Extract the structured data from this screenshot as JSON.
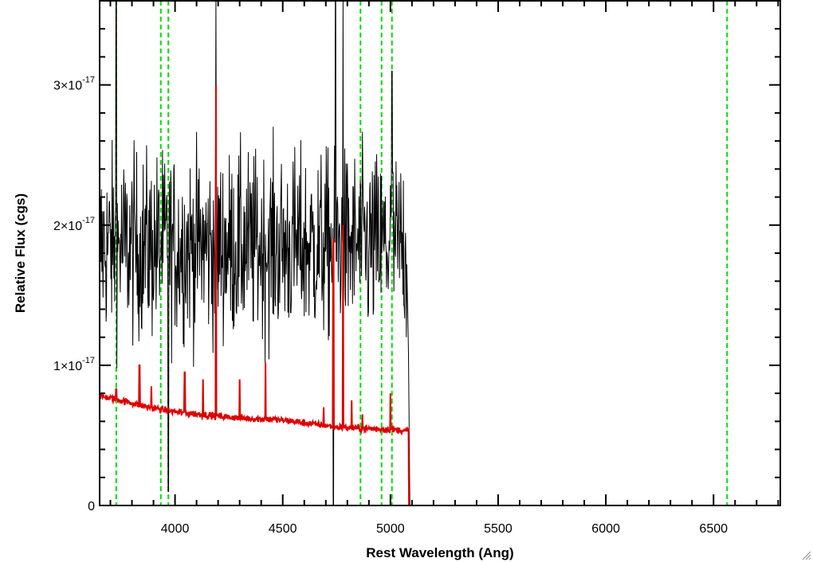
{
  "chart_data": {
    "type": "line",
    "title": "",
    "xlabel": "Rest Wavelength (Ang)",
    "ylabel": "Relative Flux (cgs)",
    "xlim": [
      3650,
      6810
    ],
    "ylim": [
      0,
      3.6e-17
    ],
    "x_ticks": [
      {
        "value": 4000,
        "label": "4000"
      },
      {
        "value": 4500,
        "label": "4500"
      },
      {
        "value": 5000,
        "label": "5000"
      },
      {
        "value": 5500,
        "label": "5500"
      },
      {
        "value": 6000,
        "label": "6000"
      },
      {
        "value": 6500,
        "label": "6500"
      }
    ],
    "y_ticks": [
      {
        "value": 0,
        "mantissa": "0",
        "exponent": ""
      },
      {
        "value": 1e-17,
        "mantissa": "1×10",
        "exponent": "-17"
      },
      {
        "value": 2e-17,
        "mantissa": "2×10",
        "exponent": "-17"
      },
      {
        "value": 3e-17,
        "mantissa": "3×10",
        "exponent": "-17"
      }
    ],
    "grid": false,
    "vertical_lines": {
      "color": "#00dd00",
      "style": "dashed",
      "x": [
        3727,
        3934,
        3969,
        4861,
        4959,
        5007,
        6563
      ]
    },
    "series": [
      {
        "color": "#000000",
        "style": "noisy spectrum",
        "range": [
          3650,
          5085
        ],
        "continuum_mean": 1.85e-17,
        "noise_sigma": 3.3e-18,
        "x": [
          3650,
          3700,
          3727,
          3740,
          3800,
          3850,
          3900,
          3950,
          3969,
          4000,
          4100,
          4190,
          4200,
          4300,
          4400,
          4500,
          4600,
          4700,
          4735,
          4745,
          4780,
          4800,
          4900,
          5000,
          5007,
          5050,
          5075,
          5085,
          5090,
          6810
        ],
        "y": [
          1.6e-17,
          1.7e-17,
          3.6e-17,
          1.8e-17,
          1.9e-17,
          1.8e-17,
          1.9e-17,
          2e-17,
          1e-18,
          1.9e-17,
          1.95e-17,
          3.6e-17,
          1.9e-17,
          1.9e-17,
          2e-17,
          2e-17,
          1.95e-17,
          1.9e-17,
          0.0,
          3.6e-17,
          3.6e-17,
          1.9e-17,
          1.9e-17,
          1.9e-17,
          3.1e-17,
          1.9e-17,
          1.8e-17,
          1e-17,
          0,
          0
        ]
      },
      {
        "color": "#dd0000",
        "style": "model",
        "x": [
          3650,
          3750,
          3850,
          3950,
          4050,
          4150,
          4250,
          4350,
          4450,
          4550,
          4650,
          4750,
          4850,
          4950,
          5000,
          5085,
          5086,
          6810
        ],
        "y": [
          7.8e-18,
          7.5e-18,
          7.1e-18,
          6.8e-18,
          6.6e-18,
          6.45e-18,
          6.3e-18,
          6.2e-18,
          6.15e-18,
          6e-18,
          5.8e-18,
          5.6e-18,
          5.5e-18,
          5.45e-18,
          5.45e-18,
          5.3e-18,
          0,
          0
        ],
        "emission_lines": [
          {
            "x": 3727,
            "peak": 8.3e-18
          },
          {
            "x": 3835,
            "peak": 1e-17
          },
          {
            "x": 3890,
            "peak": 8.5e-18
          },
          {
            "x": 4045,
            "peak": 9.5e-18
          },
          {
            "x": 4130,
            "peak": 9e-18
          },
          {
            "x": 4190,
            "peak": 3e-17
          },
          {
            "x": 4300,
            "peak": 9e-18
          },
          {
            "x": 4420,
            "peak": 1.02e-17
          },
          {
            "x": 4690,
            "peak": 7e-18
          },
          {
            "x": 4735,
            "peak": 1.9e-17
          },
          {
            "x": 4780,
            "peak": 2e-17
          },
          {
            "x": 4820,
            "peak": 7.5e-18
          },
          {
            "x": 4870,
            "peak": 6.5e-18
          },
          {
            "x": 5000,
            "peak": 8e-18
          }
        ]
      }
    ]
  }
}
